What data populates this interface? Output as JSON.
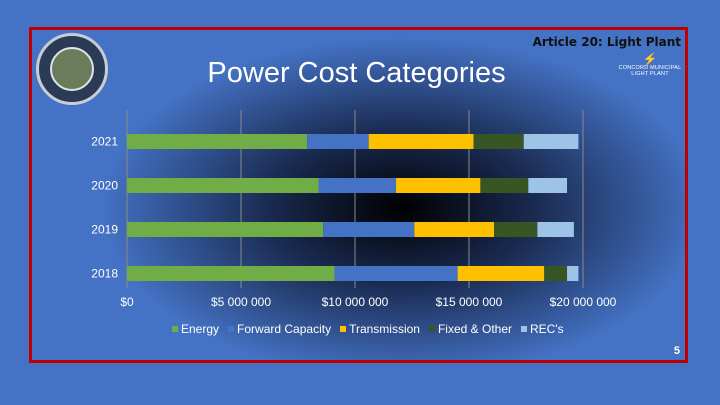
{
  "slide": {
    "article": "Article 20: Light Plant",
    "logo_text_1": "CONCORD MUNICIPAL",
    "logo_text_2": "LIGHT PLANT",
    "page_number": "5"
  },
  "chart_data": {
    "type": "bar",
    "orientation": "horizontal",
    "stacked": true,
    "title": "Power Cost Categories",
    "categories": [
      "2021",
      "2020",
      "2019",
      "2018"
    ],
    "series": [
      {
        "name": "Energy",
        "color": "#70ad47",
        "values": [
          7900000,
          8400000,
          8600000,
          9100000
        ]
      },
      {
        "name": "Forward Capacity",
        "color": "#4472c4",
        "values": [
          2700000,
          3400000,
          4000000,
          5400000
        ]
      },
      {
        "name": "Transmission",
        "color": "#ffc000",
        "values": [
          4600000,
          3700000,
          3500000,
          3800000
        ]
      },
      {
        "name": "Fixed & Other",
        "color": "#375623",
        "values": [
          2200000,
          2100000,
          1900000,
          1000000
        ]
      },
      {
        "name": "REC's",
        "color": "#9dc3e6",
        "values": [
          2400000,
          1700000,
          1600000,
          500000
        ]
      }
    ],
    "x_ticks": [
      "$0",
      "$5 000 000",
      "$10 000 000",
      "$15 000 000",
      "$20 000 000"
    ],
    "xlim": [
      0,
      20000000
    ],
    "xlabel": "",
    "ylabel": "",
    "grid": true,
    "legend_position": "bottom"
  }
}
